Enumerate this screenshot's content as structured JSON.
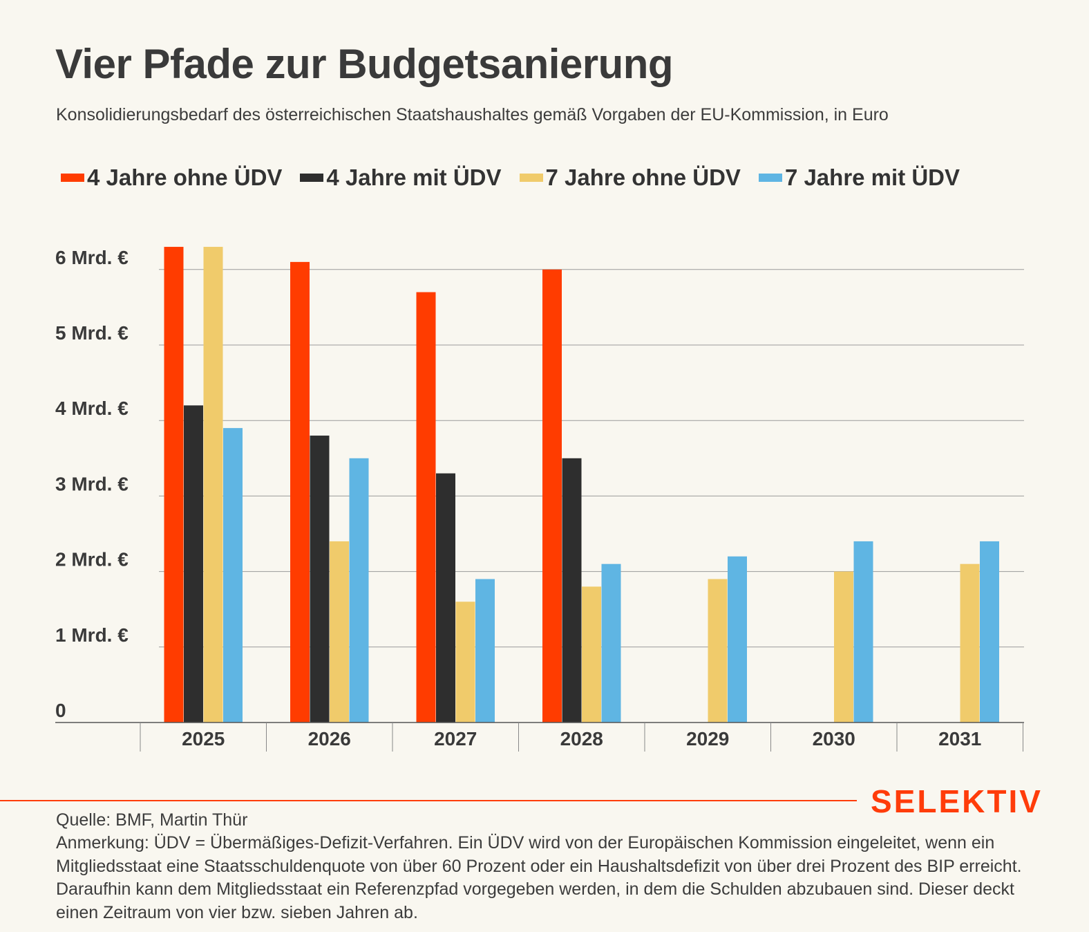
{
  "header": {
    "title": "Vier Pfade zur Budgetsanierung",
    "subtitle": "Konsolidierungsbedarf des österreichischen Staatshaushaltes gemäß Vorgaben der EU-Kommission, in Euro"
  },
  "legend": [
    {
      "label": "4 Jahre ohne ÜDV",
      "color": "#ff3c00"
    },
    {
      "label": "4 Jahre mit ÜDV",
      "color": "#2e2e2e"
    },
    {
      "label": "7 Jahre ohne ÜDV",
      "color": "#f0cb6b"
    },
    {
      "label": "7 Jahre mit ÜDV",
      "color": "#5fb5e3"
    }
  ],
  "chart_data": {
    "type": "bar",
    "categories": [
      "2025",
      "2026",
      "2027",
      "2028",
      "2029",
      "2030",
      "2031"
    ],
    "series": [
      {
        "name": "4 Jahre ohne ÜDV",
        "color": "#ff3c00",
        "values": [
          6.3,
          6.1,
          5.7,
          6.0,
          null,
          null,
          null
        ]
      },
      {
        "name": "4 Jahre mit ÜDV",
        "color": "#2e2e2e",
        "values": [
          4.2,
          3.8,
          3.3,
          3.5,
          null,
          null,
          null
        ]
      },
      {
        "name": "7 Jahre ohne ÜDV",
        "color": "#f0cb6b",
        "values": [
          6.3,
          2.4,
          1.6,
          1.8,
          1.9,
          2.0,
          2.1
        ]
      },
      {
        "name": "7 Jahre mit ÜDV",
        "color": "#5fb5e3",
        "values": [
          3.9,
          3.5,
          1.9,
          2.1,
          2.2,
          2.4,
          2.4
        ]
      }
    ],
    "yticks": [
      {
        "value": 0,
        "label": "0"
      },
      {
        "value": 1,
        "label": "1 Mrd. €"
      },
      {
        "value": 2,
        "label": "2 Mrd. €"
      },
      {
        "value": 3,
        "label": "3 Mrd. €"
      },
      {
        "value": 4,
        "label": "4 Mrd. €"
      },
      {
        "value": 5,
        "label": "5 Mrd. €"
      },
      {
        "value": 6,
        "label": "6 Mrd. €"
      }
    ],
    "ylim": [
      0,
      6.3
    ],
    "grid": true,
    "legend_position": "top-left"
  },
  "footer": {
    "brand": "SELEKTIV",
    "source": "Quelle: BMF, Martin Thür",
    "note": "Anmerkung: ÜDV = Übermäßiges-Defizit-Verfahren. Ein ÜDV wird von der Europäischen Kommission eingeleitet, wenn ein Mitgliedsstaat eine Staatsschuldenquote von über 60 Prozent oder ein Haushaltsdefizit von über drei Prozent des BIP erreicht. Daraufhin kann dem Mitgliedsstaat ein Referenzpfad vorgegeben werden, in dem die Schulden abzubauen sind. Dieser deckt einen Zeitraum von vier bzw. sieben Jahren ab."
  }
}
